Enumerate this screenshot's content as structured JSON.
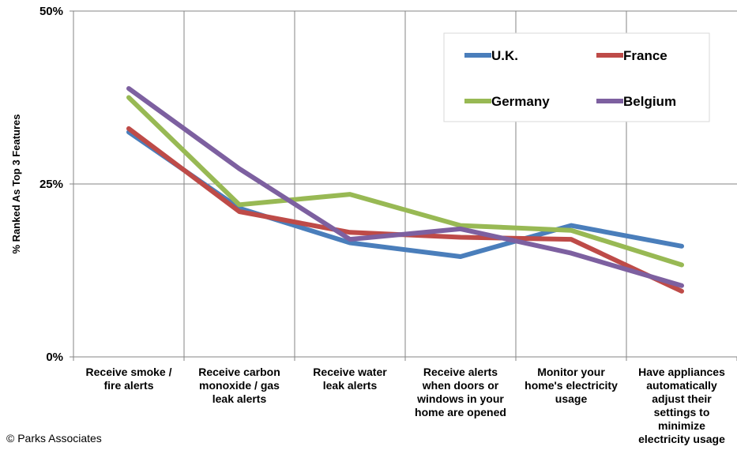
{
  "chart_data": {
    "type": "line",
    "ylabel": "% Ranked As Top 3 Features",
    "ylim": [
      0,
      50
    ],
    "yticks": [
      "0%",
      "25%",
      "50%"
    ],
    "ytick_values": [
      0,
      25,
      50
    ],
    "categories": [
      [
        "Receive smoke /",
        "fire alerts"
      ],
      [
        "Receive carbon",
        "monoxide / gas",
        "leak alerts"
      ],
      [
        "Receive water",
        "leak alerts"
      ],
      [
        "Receive alerts",
        "when doors or",
        "windows in your",
        "home are opened"
      ],
      [
        "Monitor your",
        "home's electricity",
        "usage"
      ],
      [
        "Have appliances",
        "automatically",
        "adjust their",
        "settings to",
        "minimize",
        "electricity usage"
      ]
    ],
    "grid": true,
    "legend_position": "top-right",
    "series": [
      {
        "name": "U.K.",
        "color": "#4a7ebb",
        "values": [
          32.5,
          21.5,
          16.5,
          14.5,
          19,
          16
        ]
      },
      {
        "name": "France",
        "color": "#be4b48",
        "values": [
          33,
          21,
          18,
          17.3,
          17,
          9.5
        ]
      },
      {
        "name": "Germany",
        "color": "#98b954",
        "values": [
          37.5,
          22,
          23.5,
          19,
          18.3,
          13.3
        ]
      },
      {
        "name": "Belgium",
        "color": "#7d60a0",
        "values": [
          38.8,
          27.2,
          17,
          18.5,
          15,
          10.3
        ]
      }
    ]
  },
  "copyright": "© Parks Associates"
}
